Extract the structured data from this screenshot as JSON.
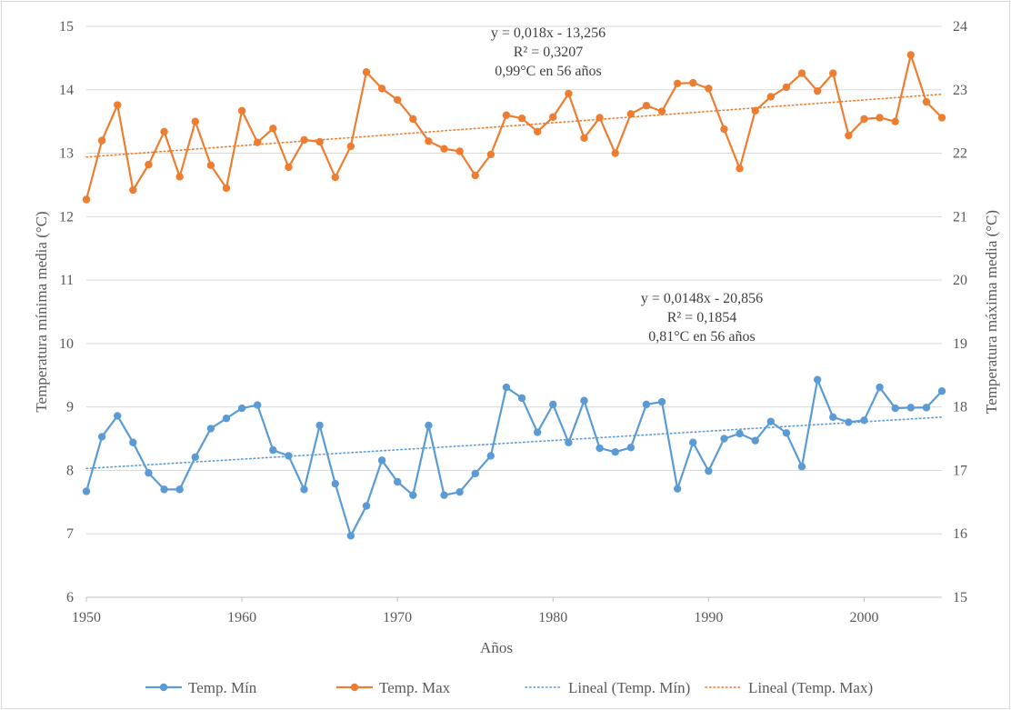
{
  "chart_data": {
    "type": "line",
    "xlabel": "Años",
    "ylabel_left": "Temperatura mínima media (°C)",
    "ylabel_right": "Temperatura máxima media (°C)",
    "xlim": [
      1950,
      2005
    ],
    "ylim_left": [
      6,
      15
    ],
    "ylim_right": [
      15,
      24
    ],
    "x_ticks": [
      "1950",
      "1960",
      "1970",
      "1980",
      "1990",
      "2000"
    ],
    "y_ticks_left": [
      "6",
      "7",
      "8",
      "9",
      "10",
      "11",
      "12",
      "13",
      "14",
      "15"
    ],
    "y_ticks_right": [
      "15",
      "16",
      "17",
      "18",
      "19",
      "20",
      "21",
      "22",
      "23",
      "24"
    ],
    "grid": "horizontal",
    "legend_position": "bottom",
    "x": [
      1950,
      1951,
      1952,
      1953,
      1954,
      1955,
      1956,
      1957,
      1958,
      1959,
      1960,
      1961,
      1962,
      1963,
      1964,
      1965,
      1966,
      1967,
      1968,
      1969,
      1970,
      1971,
      1972,
      1973,
      1974,
      1975,
      1976,
      1977,
      1978,
      1979,
      1980,
      1981,
      1982,
      1983,
      1984,
      1985,
      1986,
      1987,
      1988,
      1989,
      1990,
      1991,
      1992,
      1993,
      1994,
      1995,
      1996,
      1997,
      1998,
      1999,
      2000,
      2001,
      2002,
      2003,
      2004,
      2005
    ],
    "series": [
      {
        "name": "Temp. Mín",
        "axis": "left",
        "color": "#5b9bd5",
        "values": [
          7.67,
          8.53,
          8.86,
          8.44,
          7.96,
          7.7,
          7.7,
          8.21,
          8.66,
          8.82,
          8.98,
          9.03,
          8.32,
          8.23,
          7.7,
          8.71,
          7.79,
          6.97,
          7.44,
          8.16,
          7.82,
          7.61,
          8.71,
          7.61,
          7.66,
          7.95,
          8.23,
          9.31,
          9.14,
          8.6,
          9.04,
          8.44,
          9.1,
          8.35,
          8.29,
          8.36,
          9.04,
          9.08,
          7.71,
          8.44,
          7.99,
          8.5,
          8.58,
          8.47,
          8.77,
          8.59,
          8.06,
          9.43,
          8.84,
          8.76,
          8.79,
          9.31,
          8.98,
          8.99,
          8.99,
          9.25
        ]
      },
      {
        "name": "Temp. Max",
        "axis": "right",
        "color": "#ed7d31",
        "values": [
          21.27,
          22.2,
          22.76,
          21.42,
          21.82,
          22.34,
          21.63,
          22.5,
          21.81,
          21.45,
          22.67,
          22.17,
          22.39,
          21.78,
          22.21,
          22.18,
          21.62,
          22.11,
          23.28,
          23.02,
          22.84,
          22.54,
          22.19,
          22.07,
          22.03,
          21.65,
          21.98,
          22.6,
          22.55,
          22.34,
          22.57,
          22.94,
          22.24,
          22.56,
          22.0,
          22.62,
          22.75,
          22.66,
          23.1,
          23.11,
          23.02,
          22.38,
          21.76,
          22.67,
          22.89,
          23.04,
          23.26,
          22.98,
          23.26,
          22.28,
          22.54,
          22.56,
          22.5,
          23.55,
          22.81,
          22.56
        ]
      }
    ],
    "trendlines": [
      {
        "name": "Lineal (Temp. Mín)",
        "axis": "left",
        "color": "#5b9bd5",
        "x": [
          1950,
          2005
        ],
        "values": [
          8.03,
          8.84
        ],
        "equation": "y = 0,0148x - 20,856",
        "r2": "R² = 0,1854",
        "note": "0,81°C en 56 años"
      },
      {
        "name": "Lineal (Temp. Max)",
        "axis": "right",
        "color": "#ed7d31",
        "x": [
          1950,
          2005
        ],
        "values": [
          21.94,
          22.93
        ],
        "equation": "y = 0,018x - 13,256",
        "r2": "R² = 0,3207",
        "note": "0,99°C en 56 años"
      }
    ]
  },
  "legend": [
    {
      "label": "Temp. Mín",
      "style": "line-marker",
      "color": "#5b9bd5"
    },
    {
      "label": "Temp. Max",
      "style": "line-marker",
      "color": "#ed7d31"
    },
    {
      "label": "Lineal (Temp. Mín)",
      "style": "dotted",
      "color": "#5b9bd5"
    },
    {
      "label": "Lineal (Temp. Max)",
      "style": "dotted",
      "color": "#ed7d31"
    }
  ]
}
